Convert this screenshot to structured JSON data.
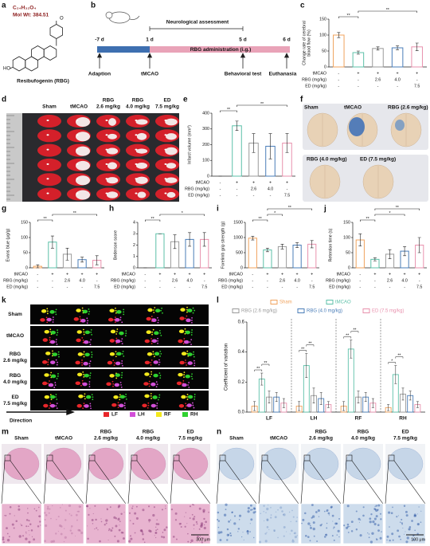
{
  "panels": {
    "a": {
      "label": "a",
      "formula": "C₂₄H₃₂O₄",
      "weight": "Mol Wt: 384.51",
      "name": "Resibufogenin (RBG)"
    },
    "b": {
      "label": "b",
      "days": [
        "-7 d",
        "1 d",
        "5 d",
        "6 d"
      ],
      "period": "Neurological assessment",
      "treatment": "RBG administration (i.g.)",
      "events": [
        "Adaption",
        "tMCAO",
        "Behavioral test",
        "Euthanasia"
      ]
    },
    "d": {
      "label": "d",
      "columns": [
        [
          "Sham"
        ],
        [
          "tMCAO"
        ],
        [
          "RBG",
          "2.6 mg/kg"
        ],
        [
          "RBG",
          "4.0 mg/kg"
        ],
        [
          "ED",
          "7.5 mg/kg"
        ]
      ]
    },
    "f": {
      "label": "f",
      "brains": [
        "Sham",
        "tMCAO",
        "RBG (2.6 mg/kg)",
        "RBG (4.0 mg/kg)",
        "ED (7.5 mg/kg)"
      ]
    },
    "k": {
      "label": "k",
      "rows": [
        [
          "Sham"
        ],
        [
          "tMCAO"
        ],
        [
          "RBG",
          "2.6 mg/kg"
        ],
        [
          "RBG",
          "4.0 mg/kg"
        ],
        [
          "ED",
          "7.5 mg/kg"
        ]
      ],
      "paws": [
        {
          "name": "LF",
          "color": "#e8262a"
        },
        {
          "name": "LH",
          "color": "#d24fd8"
        },
        {
          "name": "RF",
          "color": "#f3e81c"
        },
        {
          "name": "RH",
          "color": "#2fd12f"
        }
      ],
      "direction": "Direction"
    },
    "m": {
      "label": "m",
      "columns": [
        [
          "Sham"
        ],
        [
          "tMCAO"
        ],
        [
          "RBG",
          "2.6 mg/kg"
        ],
        [
          "RBG",
          "4.0 mg/kg"
        ],
        [
          "ED",
          "7.5 mg/kg"
        ]
      ],
      "scale": "300 μm"
    },
    "n": {
      "label": "n",
      "columns": [
        [
          "Sham"
        ],
        [
          "tMCAO"
        ],
        [
          "RBG",
          "2.6 mg/kg"
        ],
        [
          "RBG",
          "4.0 mg/kg"
        ],
        [
          "ED",
          "7.5 mg/kg"
        ]
      ],
      "scale": "100 μm"
    }
  },
  "conditions": {
    "rows": [
      {
        "name": "tMCAO",
        "cells": [
          "-",
          "+",
          "+",
          "+",
          "+"
        ]
      },
      {
        "name": "RBG (mg/kg)",
        "cells": [
          "-",
          "-",
          "2.6",
          "4.0",
          "-"
        ]
      },
      {
        "name": "ED (mg/kg)",
        "cells": [
          "-",
          "-",
          "-",
          "-",
          "7.5"
        ]
      }
    ]
  },
  "chart_data": [
    {
      "type": "bar",
      "label": "c",
      "ylabel": [
        "Change rate of cerebral",
        "blood flow (%)"
      ],
      "values": [
        100,
        45,
        58,
        60,
        63
      ],
      "errors": [
        8,
        5,
        5,
        6,
        12
      ],
      "colors": [
        "#f0a35e",
        "#5cc0a8",
        "#9a9a9a",
        "#4a7db8",
        "#e891ad"
      ],
      "ylim": [
        0,
        150
      ],
      "yticks": [
        0,
        50,
        100,
        150
      ],
      "annotations": [
        {
          "text": "**",
          "from": 0,
          "to": 1
        },
        {
          "text": "**",
          "from": 1,
          "to": 4
        }
      ]
    },
    {
      "type": "bar",
      "label": "e",
      "ylabel": "Infarct volume (mm³)",
      "values": [
        0,
        320,
        210,
        190,
        210
      ],
      "errors": [
        0,
        30,
        60,
        80,
        60
      ],
      "colors": [
        "#f0a35e",
        "#5cc0a8",
        "#9a9a9a",
        "#4a7db8",
        "#e891ad"
      ],
      "ylim": [
        0,
        400
      ],
      "yticks": [
        0,
        100,
        200,
        300,
        400
      ],
      "annotations": [
        {
          "text": "**",
          "from": 0,
          "to": 1
        },
        {
          "text": "**",
          "from": 1,
          "to": 4
        }
      ]
    },
    {
      "type": "bar",
      "label": "g",
      "ylabel": "Evans blue (μg/g)",
      "values": [
        5,
        85,
        45,
        27,
        25
      ],
      "errors": [
        5,
        20,
        20,
        8,
        15
      ],
      "colors": [
        "#f0a35e",
        "#5cc0a8",
        "#9a9a9a",
        "#4a7db8",
        "#e891ad"
      ],
      "ylim": [
        0,
        150
      ],
      "yticks": [
        0,
        50,
        100,
        150
      ],
      "annotations": [
        {
          "text": "**",
          "from": 0,
          "to": 1
        },
        {
          "text": "**",
          "from": 1,
          "to": 4
        }
      ]
    },
    {
      "type": "bar",
      "label": "h",
      "ylabel": "Bederson score",
      "values": [
        0,
        3,
        2.3,
        2.5,
        2.5
      ],
      "errors": [
        0,
        0,
        0.6,
        0.6,
        0.6
      ],
      "colors": [
        "#f0a35e",
        "#5cc0a8",
        "#9a9a9a",
        "#4a7db8",
        "#e891ad"
      ],
      "ylim": [
        0,
        4
      ],
      "yticks": [
        0,
        1,
        2,
        3,
        4
      ],
      "annotations": [
        {
          "text": "**",
          "from": 0,
          "to": 1
        },
        {
          "text": "*",
          "from": 1,
          "to": 4
        }
      ]
    },
    {
      "type": "bar",
      "label": "i",
      "ylabel": "Forelimb grip strength (g)",
      "values": [
        980,
        590,
        700,
        750,
        780
      ],
      "errors": [
        60,
        60,
        80,
        80,
        120
      ],
      "colors": [
        "#f0a35e",
        "#5cc0a8",
        "#9a9a9a",
        "#4a7db8",
        "#e891ad"
      ],
      "ylim": [
        0,
        1500
      ],
      "yticks": [
        0,
        500,
        1000,
        1500
      ],
      "annotations": [
        {
          "text": "**",
          "from": 0,
          "to": 1
        },
        {
          "text": "*",
          "from": 1,
          "to": 2
        },
        {
          "text": "**",
          "from": 1,
          "to": 4
        }
      ]
    },
    {
      "type": "bar",
      "label": "j",
      "ylabel": "Retention time (s)",
      "values": [
        92,
        28,
        45,
        55,
        75
      ],
      "errors": [
        20,
        5,
        15,
        15,
        25
      ],
      "colors": [
        "#f0a35e",
        "#5cc0a8",
        "#9a9a9a",
        "#4a7db8",
        "#e891ad"
      ],
      "ylim": [
        0,
        150
      ],
      "yticks": [
        0,
        50,
        100,
        150
      ],
      "annotations": [
        {
          "text": "**",
          "from": 0,
          "to": 1
        },
        {
          "text": "*",
          "from": 1,
          "to": 3
        },
        {
          "text": "**",
          "from": 1,
          "to": 4
        }
      ]
    },
    {
      "type": "grouped_bar",
      "label": "l",
      "ylabel": "Coefficient of variation",
      "categories": [
        "LF",
        "LH",
        "RF",
        "RH"
      ],
      "series": [
        {
          "name": "Sham",
          "color": "#f0a35e",
          "values": [
            0.04,
            0.04,
            0.04,
            0.03
          ],
          "errors": [
            0.03,
            0.03,
            0.03,
            0.02
          ]
        },
        {
          "name": "tMCAO",
          "color": "#5cc0a8",
          "values": [
            0.22,
            0.31,
            0.42,
            0.25
          ],
          "errors": [
            0.04,
            0.08,
            0.06,
            0.06
          ]
        },
        {
          "name": "RBG (2.6 mg/kg)",
          "color": "#9a9a9a",
          "values": [
            0.1,
            0.11,
            0.1,
            0.12
          ],
          "errors": [
            0.04,
            0.05,
            0.04,
            0.04
          ]
        },
        {
          "name": "RBG (4.0 mg/kg)",
          "color": "#4a7db8",
          "values": [
            0.1,
            0.09,
            0.1,
            0.11
          ],
          "errors": [
            0.03,
            0.04,
            0.03,
            0.03
          ]
        },
        {
          "name": "ED (7.5 mg/kg)",
          "color": "#e891ad",
          "values": [
            0.06,
            0.05,
            0.06,
            0.05
          ],
          "errors": [
            0.03,
            0.02,
            0.03,
            0.02
          ]
        }
      ],
      "ylim": [
        0,
        0.6
      ],
      "yticks": [
        {
          "value": 0,
          "label": "0.0"
        },
        {
          "value": 0.2,
          "label": "0.2"
        },
        {
          "value": 0.4,
          "label": "0.4"
        },
        {
          "value": 0.6,
          "label": "0.6"
        }
      ],
      "annotations": [
        {
          "category": 0,
          "text": "**",
          "from": 0,
          "to": 1
        },
        {
          "category": 0,
          "text": "**",
          "from": 1,
          "to": 2
        },
        {
          "category": 1,
          "text": "**",
          "from": 0,
          "to": 1
        },
        {
          "category": 1,
          "text": "**",
          "from": 1,
          "to": 2
        },
        {
          "category": 2,
          "text": "**",
          "from": 0,
          "to": 1
        },
        {
          "category": 2,
          "text": "**",
          "from": 1,
          "to": 2
        },
        {
          "category": 3,
          "text": "*",
          "from": 0,
          "to": 1
        },
        {
          "category": 3,
          "text": "**",
          "from": 1,
          "to": 2
        }
      ]
    }
  ]
}
